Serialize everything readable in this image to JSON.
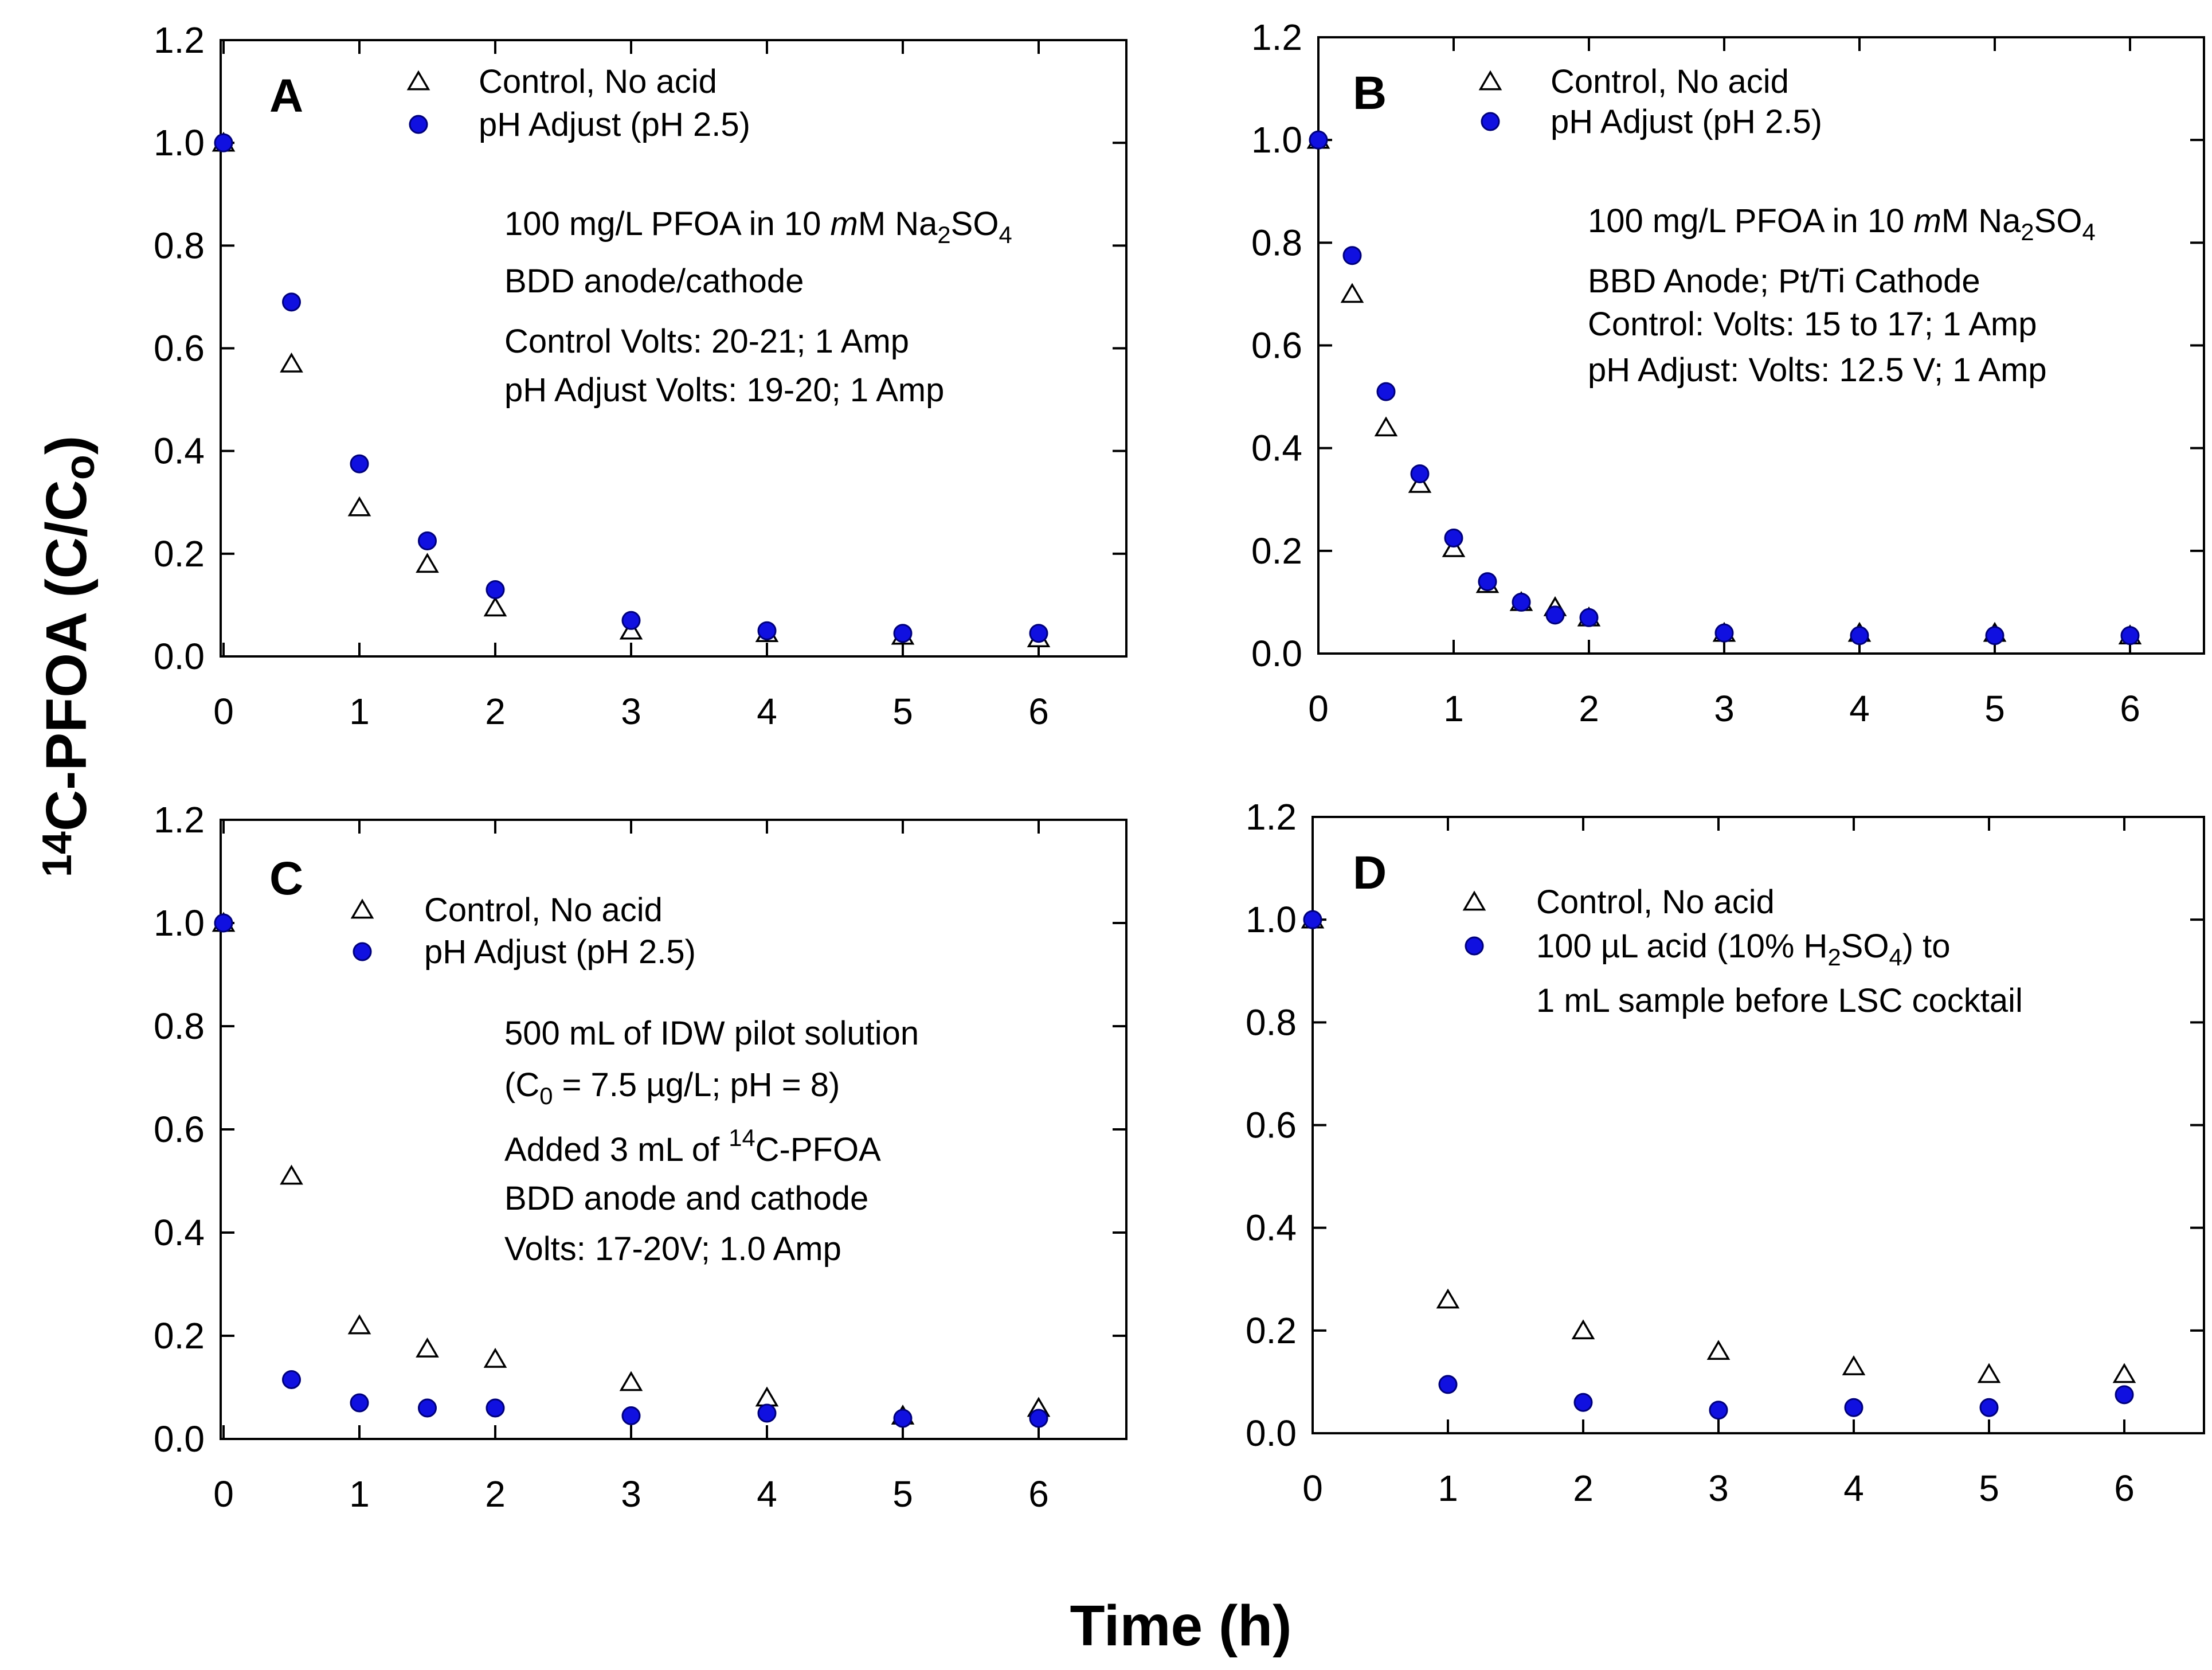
{
  "figure": {
    "x_axis_title": "Time (h)",
    "y_axis_title": {
      "sup": "14",
      "main": "C-PFOA (C/C",
      "sub": "o",
      "close": ")"
    }
  },
  "colors": {
    "control_marker_fill": "#ffffff",
    "control_marker_stroke": "#000000",
    "ph_marker_fill": "#1010e0",
    "ph_marker_stroke": "#00007a",
    "axis": "#000000"
  },
  "chart_data": [
    {
      "type": "scatter",
      "panel": "A",
      "xlim": [
        0,
        6.6
      ],
      "ylim": [
        0,
        1.2
      ],
      "xticks": [
        0,
        1,
        2,
        3,
        4,
        5,
        6
      ],
      "yticks": [
        0.0,
        0.2,
        0.4,
        0.6,
        0.8,
        1.0,
        1.2
      ],
      "grid": false,
      "legend": [
        {
          "marker": "triangle",
          "label": "Control, No acid"
        },
        {
          "marker": "circle",
          "label": "pH Adjust (pH 2.5)"
        }
      ],
      "notes": [
        [
          {
            "t": "100 mg/L PFOA in 10 "
          },
          {
            "t": "m",
            "italic": true
          },
          {
            "t": "M Na"
          },
          {
            "t": "2",
            "sub": true
          },
          {
            "t": "SO"
          },
          {
            "t": "4",
            "sub": true
          }
        ],
        [
          {
            "t": "BDD anode/cathode"
          }
        ],
        [
          {
            "t": "Control Volts: 20-21; 1 Amp"
          }
        ],
        [
          {
            "t": "pH Adjust Volts: 19-20; 1 Amp"
          }
        ]
      ],
      "series": [
        {
          "name": "Control, No acid",
          "marker": "triangle",
          "x": [
            0,
            0.5,
            1,
            1.5,
            2,
            3,
            4,
            5,
            6
          ],
          "y": [
            1.0,
            0.57,
            0.29,
            0.18,
            0.095,
            0.05,
            0.045,
            0.04,
            0.035
          ]
        },
        {
          "name": "pH Adjust (pH 2.5)",
          "marker": "circle",
          "x": [
            0,
            0.5,
            1,
            1.5,
            2,
            3,
            4,
            5,
            6
          ],
          "y": [
            1.0,
            0.69,
            0.375,
            0.225,
            0.13,
            0.07,
            0.05,
            0.045,
            0.045
          ]
        }
      ]
    },
    {
      "type": "scatter",
      "panel": "B",
      "xlim": [
        0,
        6.6
      ],
      "ylim": [
        0,
        1.2
      ],
      "xticks": [
        0,
        1,
        2,
        3,
        4,
        5,
        6
      ],
      "yticks": [
        0.0,
        0.2,
        0.4,
        0.6,
        0.8,
        1.0,
        1.2
      ],
      "grid": false,
      "legend": [
        {
          "marker": "triangle",
          "label": "Control, No acid"
        },
        {
          "marker": "circle",
          "label": "pH Adjust (pH 2.5)"
        }
      ],
      "notes": [
        [
          {
            "t": "100 mg/L PFOA in 10 "
          },
          {
            "t": "m",
            "italic": true
          },
          {
            "t": "M Na"
          },
          {
            "t": "2",
            "sub": true
          },
          {
            "t": "SO"
          },
          {
            "t": "4",
            "sub": true
          }
        ],
        [
          {
            "t": "BBD Anode; Pt/Ti Cathode"
          }
        ],
        [
          {
            "t": "Control: Volts: 15 to 17; 1 Amp"
          }
        ],
        [
          {
            "t": "pH Adjust: Volts: 12.5 V; 1 Amp"
          }
        ]
      ],
      "series": [
        {
          "name": "Control, No acid",
          "marker": "triangle",
          "x": [
            0,
            0.25,
            0.5,
            0.75,
            1,
            1.25,
            1.5,
            1.75,
            2,
            3,
            4,
            5,
            6
          ],
          "y": [
            1.0,
            0.7,
            0.44,
            0.33,
            0.205,
            0.135,
            0.1,
            0.09,
            0.07,
            0.04,
            0.04,
            0.04,
            0.035
          ]
        },
        {
          "name": "pH Adjust (pH 2.5)",
          "marker": "circle",
          "x": [
            0,
            0.25,
            0.5,
            0.75,
            1,
            1.25,
            1.5,
            1.75,
            2,
            3,
            4,
            5,
            6
          ],
          "y": [
            1.0,
            0.775,
            0.51,
            0.35,
            0.225,
            0.14,
            0.1,
            0.075,
            0.07,
            0.04,
            0.035,
            0.035,
            0.035
          ]
        }
      ]
    },
    {
      "type": "scatter",
      "panel": "C",
      "xlim": [
        0,
        6.6
      ],
      "ylim": [
        0,
        1.2
      ],
      "xticks": [
        0,
        1,
        2,
        3,
        4,
        5,
        6
      ],
      "yticks": [
        0.0,
        0.2,
        0.4,
        0.6,
        0.8,
        1.0,
        1.2
      ],
      "grid": false,
      "legend": [
        {
          "marker": "triangle",
          "label": "Control, No acid"
        },
        {
          "marker": "circle",
          "label": "pH Adjust (pH 2.5)"
        }
      ],
      "notes": [
        [
          {
            "t": "500 mL of IDW pilot solution"
          }
        ],
        [
          {
            "t": "(C"
          },
          {
            "t": "0",
            "sub": true
          },
          {
            "t": " = 7.5 µg/L; pH = 8)"
          }
        ],
        [
          {
            "t": "Added 3 mL of "
          },
          {
            "t": "14",
            "sup": true
          },
          {
            "t": "C-PFOA"
          }
        ],
        [
          {
            "t": "BDD anode and cathode"
          }
        ],
        [
          {
            "t": "Volts: 17-20V; 1.0 Amp"
          }
        ]
      ],
      "series": [
        {
          "name": "Control, No acid",
          "marker": "triangle",
          "x": [
            0,
            0.5,
            1,
            1.5,
            2,
            3,
            4,
            5,
            6
          ],
          "y": [
            1.0,
            0.51,
            0.22,
            0.175,
            0.155,
            0.11,
            0.08,
            0.045,
            0.06
          ]
        },
        {
          "name": "pH Adjust (pH 2.5)",
          "marker": "circle",
          "x": [
            0,
            0.5,
            1,
            1.5,
            2,
            3,
            4,
            5,
            6
          ],
          "y": [
            1.0,
            0.115,
            0.07,
            0.06,
            0.06,
            0.045,
            0.05,
            0.04,
            0.04
          ]
        }
      ]
    },
    {
      "type": "scatter",
      "panel": "D",
      "xlim": [
        0,
        6.6
      ],
      "ylim": [
        0,
        1.2
      ],
      "xticks": [
        0,
        1,
        2,
        3,
        4,
        5,
        6
      ],
      "yticks": [
        0.0,
        0.2,
        0.4,
        0.6,
        0.8,
        1.0,
        1.2
      ],
      "grid": false,
      "legend": [
        {
          "marker": "triangle",
          "label": [
            {
              "t": "Control, No acid"
            }
          ]
        },
        {
          "marker": "circle",
          "label": [
            {
              "t": "100 µL acid (10% H"
            },
            {
              "t": "2",
              "sub": true
            },
            {
              "t": "SO"
            },
            {
              "t": "4",
              "sub": true
            },
            {
              "t": ") to"
            }
          ]
        },
        {
          "marker": "none",
          "label": [
            {
              "t": "1 mL sample before LSC cocktail"
            }
          ]
        }
      ],
      "notes": [],
      "series": [
        {
          "name": "Control, No acid",
          "marker": "triangle",
          "x": [
            0,
            1,
            2,
            3,
            4,
            5,
            6
          ],
          "y": [
            1.0,
            0.26,
            0.2,
            0.16,
            0.13,
            0.115,
            0.115
          ]
        },
        {
          "name": "100 µL acid (10% H2SO4) to 1 mL sample before LSC cocktail",
          "marker": "circle",
          "x": [
            0,
            1,
            2,
            3,
            4,
            5,
            6
          ],
          "y": [
            1.0,
            0.095,
            0.06,
            0.045,
            0.05,
            0.05,
            0.075
          ]
        }
      ]
    }
  ]
}
